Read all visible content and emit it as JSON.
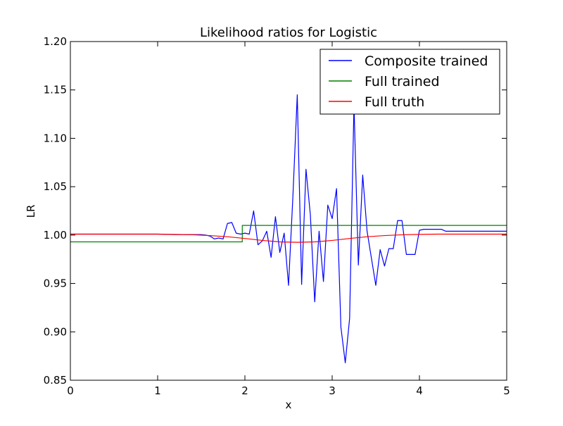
{
  "chart_data": {
    "type": "line",
    "title": "Likelihood ratios for Logistic",
    "xlabel": "x",
    "ylabel": "LR",
    "xlim": [
      0,
      5
    ],
    "ylim": [
      0.85,
      1.2
    ],
    "x_ticks": [
      0,
      1,
      2,
      3,
      4,
      5
    ],
    "x_tick_labels": [
      "0",
      "1",
      "2",
      "3",
      "4",
      "5"
    ],
    "y_ticks": [
      0.85,
      0.9,
      0.95,
      1.0,
      1.05,
      1.1,
      1.15,
      1.2
    ],
    "y_tick_labels": [
      "0.85",
      "0.90",
      "0.95",
      "1.00",
      "1.05",
      "1.10",
      "1.15",
      "1.20"
    ],
    "grid": false,
    "legend_position": "top-right",
    "series": [
      {
        "name": "Composite trained",
        "color": "#0000ff",
        "x": [
          0,
          0.2,
          0.4,
          0.6,
          0.8,
          1.0,
          1.2,
          1.4,
          1.5,
          1.55,
          1.6,
          1.65,
          1.7,
          1.75,
          1.8,
          1.85,
          1.9,
          1.95,
          2.0,
          2.05,
          2.1,
          2.15,
          2.2,
          2.25,
          2.3,
          2.35,
          2.4,
          2.45,
          2.5,
          2.55,
          2.6,
          2.65,
          2.7,
          2.75,
          2.8,
          2.85,
          2.9,
          2.95,
          3.0,
          3.05,
          3.1,
          3.15,
          3.2,
          3.25,
          3.3,
          3.35,
          3.4,
          3.45,
          3.5,
          3.55,
          3.6,
          3.65,
          3.7,
          3.75,
          3.8,
          3.85,
          3.9,
          3.95,
          4.0,
          4.05,
          4.1,
          4.15,
          4.2,
          4.25,
          4.3,
          4.4,
          4.6,
          4.8,
          5.0
        ],
        "y": [
          1.001,
          1.001,
          1.001,
          1.001,
          1.001,
          1.001,
          1.0005,
          1.0005,
          1.0005,
          1.0,
          0.999,
          0.996,
          0.997,
          0.996,
          1.012,
          1.013,
          1.002,
          1.001,
          1.002,
          1.001,
          1.025,
          0.99,
          0.994,
          1.004,
          0.977,
          1.019,
          0.982,
          1.002,
          0.948,
          1.04,
          1.145,
          0.949,
          1.068,
          1.021,
          0.931,
          1.004,
          0.952,
          1.031,
          1.017,
          1.048,
          0.905,
          0.868,
          0.914,
          1.135,
          0.969,
          1.062,
          1.004,
          0.976,
          0.948,
          0.985,
          0.968,
          0.986,
          0.986,
          1.015,
          1.015,
          0.98,
          0.98,
          0.98,
          1.005,
          1.006,
          1.006,
          1.006,
          1.006,
          1.006,
          1.004,
          1.004,
          1.004,
          1.004,
          1.004
        ]
      },
      {
        "name": "Full trained",
        "color": "#008000",
        "x": [
          0,
          1.93,
          1.93,
          1.97,
          1.97,
          5.0
        ],
        "y": [
          0.993,
          0.993,
          0.993,
          0.993,
          1.01,
          1.01
        ]
      },
      {
        "name": "Full truth",
        "color": "#ff0000",
        "x": [
          0,
          0.5,
          1.0,
          1.2,
          1.4,
          1.6,
          1.8,
          2.0,
          2.2,
          2.4,
          2.6,
          2.8,
          3.0,
          3.2,
          3.4,
          3.6,
          3.8,
          4.0,
          4.2,
          4.4,
          4.6,
          4.8,
          5.0
        ],
        "y": [
          1.001,
          1.001,
          1.001,
          1.0007,
          1.0003,
          0.9995,
          0.9983,
          0.9965,
          0.9945,
          0.993,
          0.9925,
          0.993,
          0.9945,
          0.9965,
          0.9983,
          0.9995,
          1.0003,
          1.0007,
          1.001,
          1.001,
          1.001,
          1.001,
          1.001
        ]
      }
    ]
  }
}
